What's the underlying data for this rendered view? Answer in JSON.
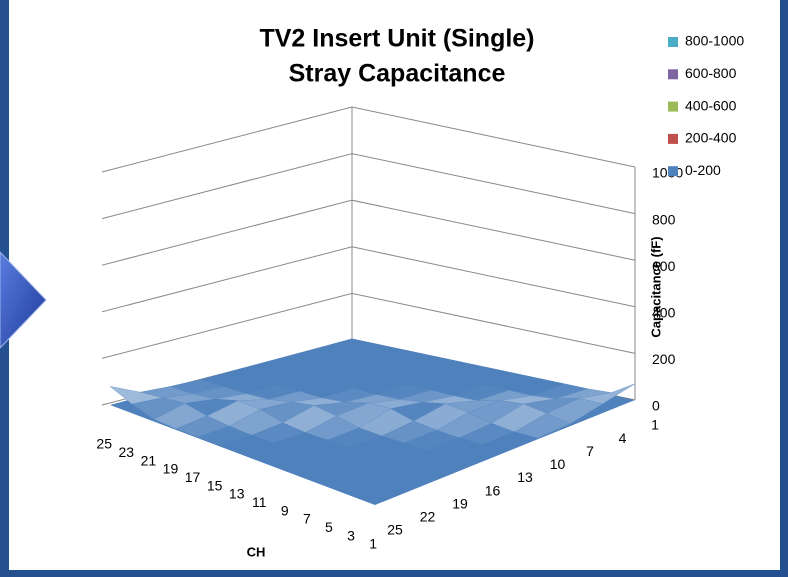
{
  "chart_data": {
    "type": "surface",
    "title": [
      "TV2 Insert Unit (Single)",
      "Stray Capacitance"
    ],
    "x_axis_label": "CH",
    "z_axis_label": "Capacitance (fF)",
    "x_categories": [
      25,
      23,
      21,
      19,
      17,
      15,
      13,
      11,
      9,
      7,
      5,
      3,
      1
    ],
    "y_categories": [
      25,
      22,
      19,
      16,
      13,
      10,
      7,
      4,
      1
    ],
    "values": [
      [
        80,
        20,
        10,
        5,
        5,
        5,
        5,
        5,
        5
      ],
      [
        40,
        30,
        10,
        5,
        5,
        5,
        5,
        5,
        5
      ],
      [
        10,
        40,
        20,
        5,
        5,
        5,
        5,
        5,
        5
      ],
      [
        5,
        20,
        45,
        10,
        5,
        5,
        5,
        5,
        5
      ],
      [
        5,
        10,
        40,
        30,
        5,
        5,
        5,
        5,
        5
      ],
      [
        5,
        5,
        15,
        45,
        15,
        5,
        5,
        5,
        5
      ],
      [
        5,
        5,
        5,
        30,
        40,
        10,
        5,
        5,
        5
      ],
      [
        5,
        5,
        5,
        10,
        45,
        25,
        5,
        5,
        5
      ],
      [
        5,
        5,
        5,
        5,
        20,
        45,
        10,
        5,
        5
      ],
      [
        5,
        5,
        5,
        5,
        10,
        35,
        35,
        5,
        5
      ],
      [
        5,
        5,
        5,
        5,
        5,
        15,
        45,
        15,
        5
      ],
      [
        5,
        5,
        5,
        5,
        5,
        5,
        30,
        40,
        10
      ],
      [
        5,
        5,
        5,
        5,
        5,
        5,
        10,
        40,
        70
      ]
    ],
    "zlim": [
      0,
      1000
    ],
    "zticks": [
      0,
      200,
      400,
      600,
      800,
      1000
    ],
    "legend_position": "right",
    "series": [
      {
        "name": "800-1000",
        "color": "#4bacc6"
      },
      {
        "name": "600-800",
        "color": "#8064a2"
      },
      {
        "name": "400-600",
        "color": "#9bbb59"
      },
      {
        "name": "200-400",
        "color": "#c0504d"
      },
      {
        "name": "0-200",
        "color": "#4f81bd"
      }
    ]
  }
}
